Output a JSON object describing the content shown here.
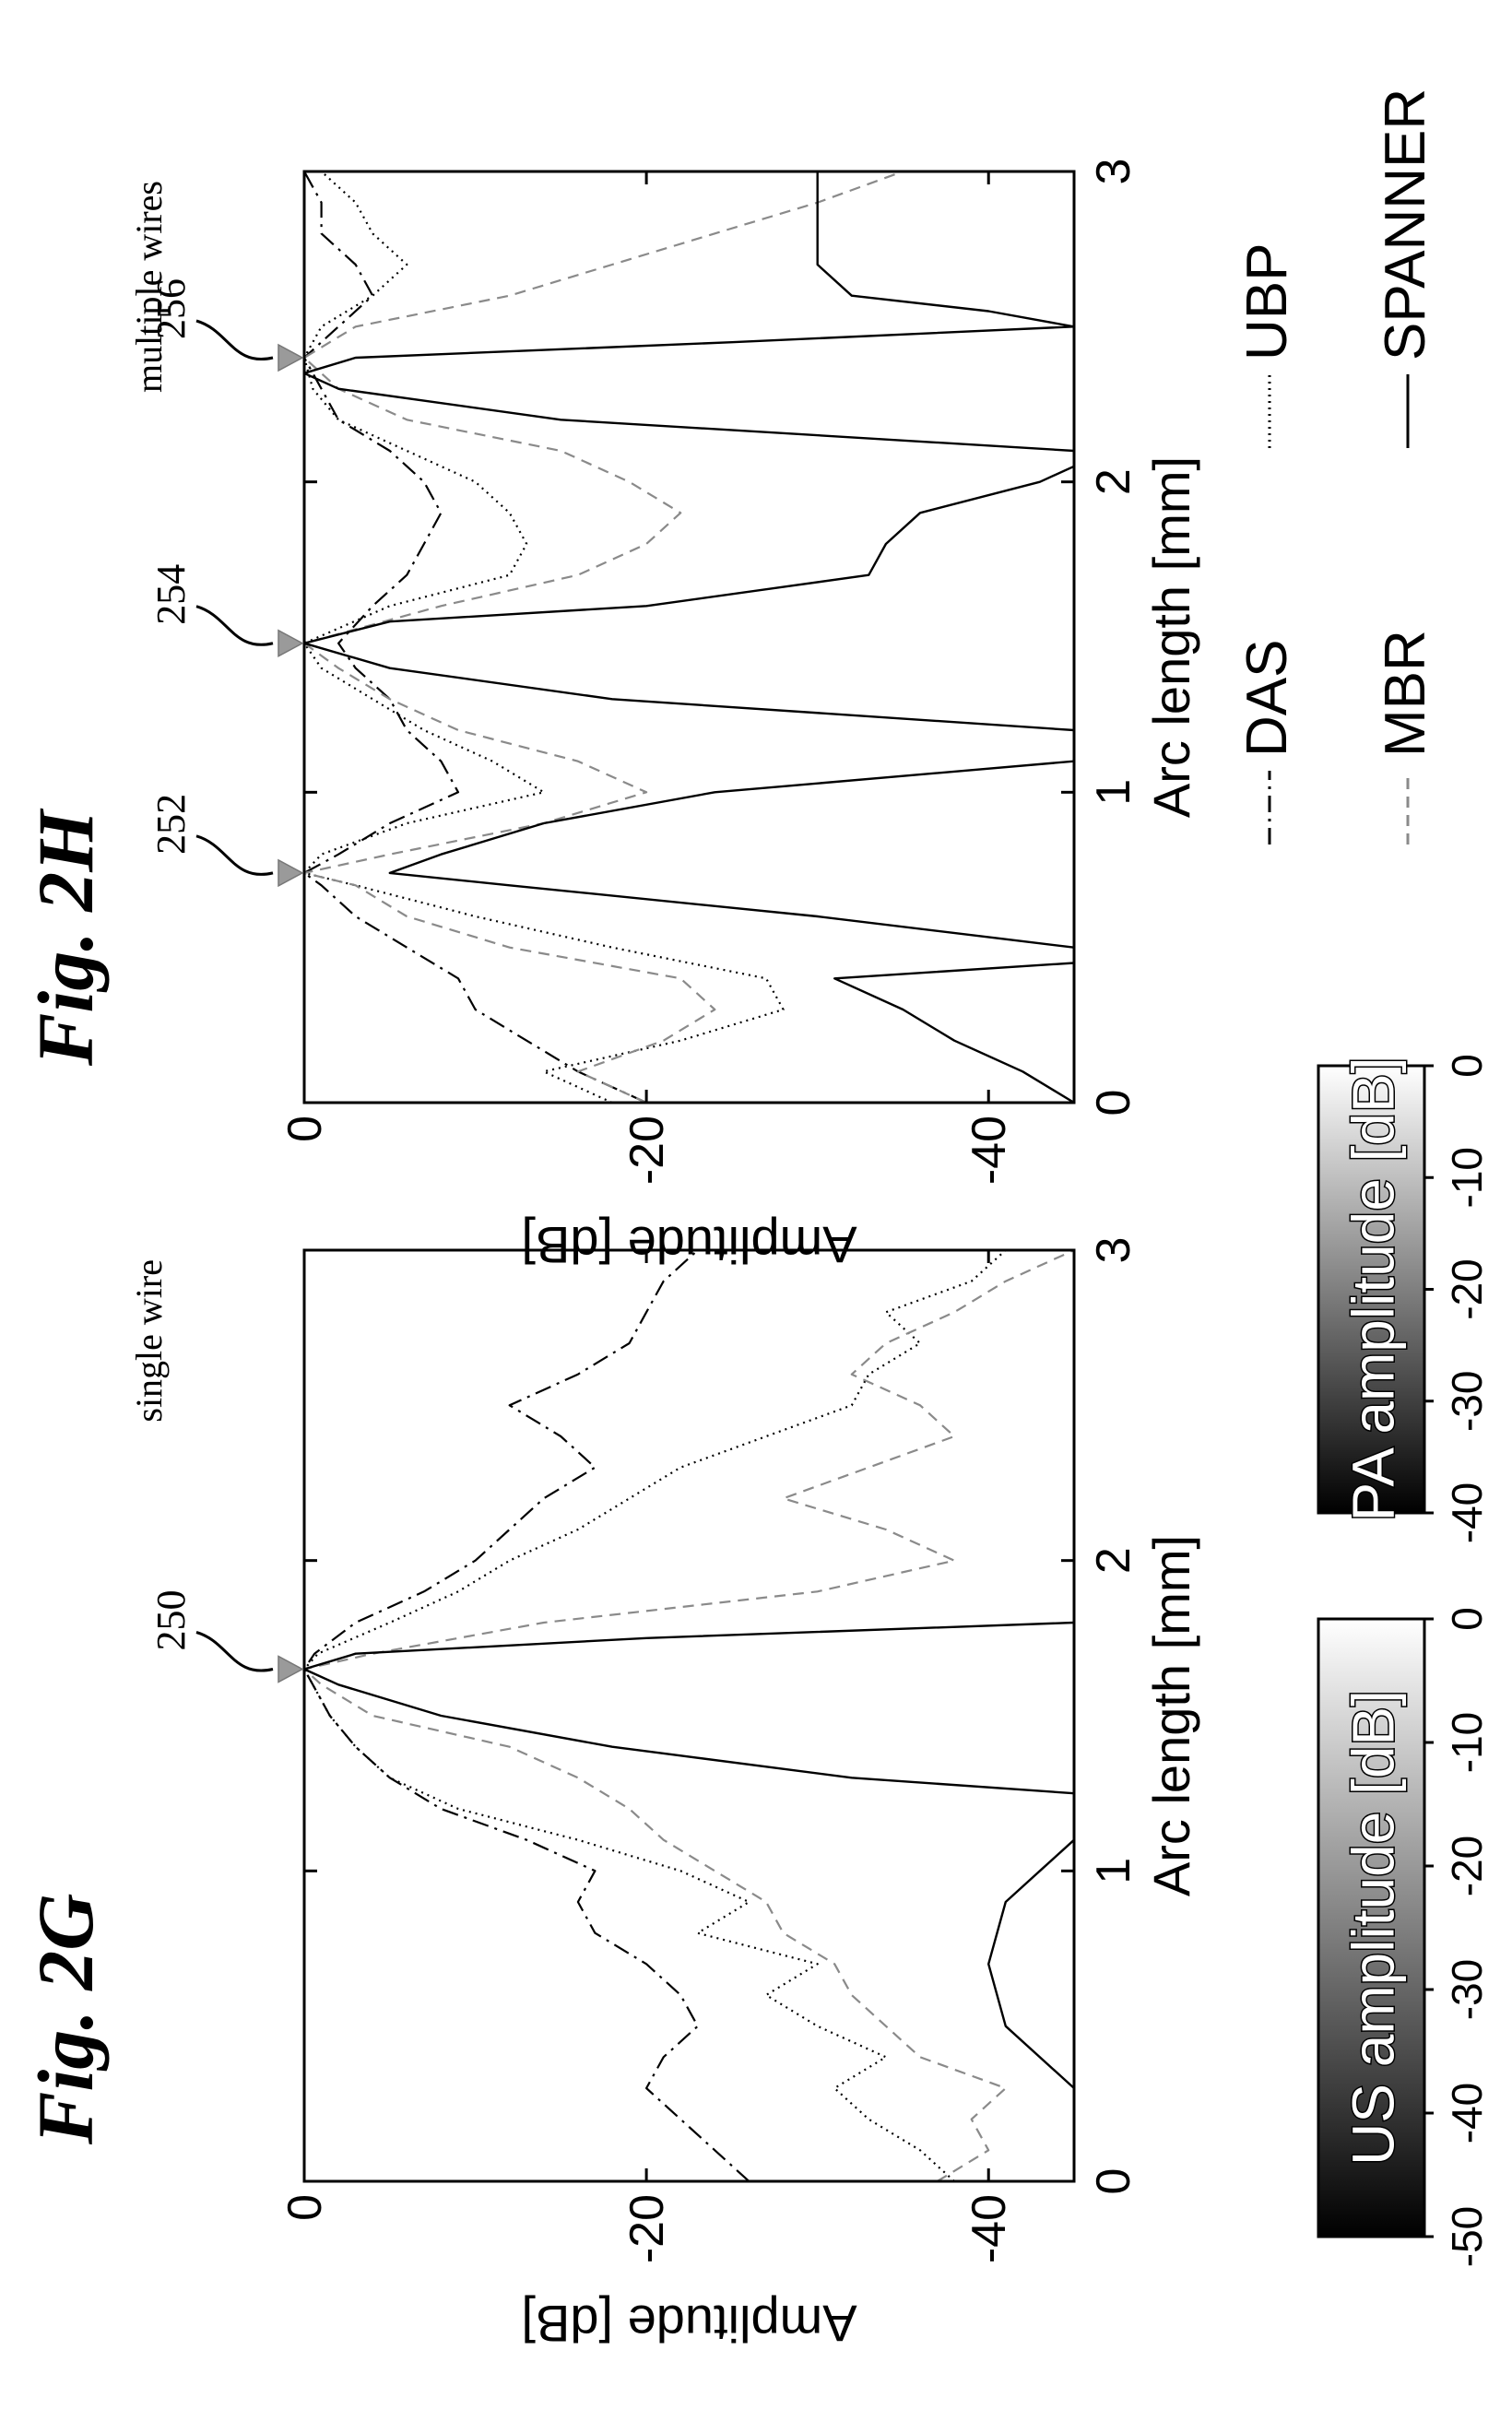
{
  "panels": [
    {
      "fig_label": "Fig. 2G",
      "subtitle": "single wire",
      "markers": [
        {
          "ref": "250",
          "x": 1.65
        }
      ]
    },
    {
      "fig_label": "Fig. 2H",
      "subtitle": "multiple wires",
      "markers": [
        {
          "ref": "252",
          "x": 0.74
        },
        {
          "ref": "254",
          "x": 1.48
        },
        {
          "ref": "256",
          "x": 2.4
        }
      ]
    }
  ],
  "legend": {
    "items": [
      {
        "label": "DAS",
        "style": "dashdot"
      },
      {
        "label": "UBP",
        "style": "dotted"
      },
      {
        "label": "MBR",
        "style": "dashed-gray"
      },
      {
        "label": "SPANNER",
        "style": "solid"
      }
    ]
  },
  "colorbars": [
    {
      "label": "US amplitude [dB]",
      "ticks": [
        "-50",
        "-40",
        "-30",
        "-20",
        "-10",
        "0"
      ]
    },
    {
      "label": "PA amplitude [dB]",
      "ticks": [
        "-40",
        "-30",
        "-20",
        "-10",
        "0"
      ]
    }
  ],
  "colors": {
    "line": "#000000",
    "mbr": "#8a8a8a",
    "marker": "#9a9a9a"
  },
  "chart_data": [
    {
      "type": "line",
      "title": "",
      "xlabel": "Arc length [mm]",
      "ylabel": "Amplitude [dB]",
      "xlim": [
        0,
        3
      ],
      "ylim": [
        -45,
        0
      ],
      "xticks": [
        "0",
        "1",
        "2",
        "3"
      ],
      "yticks": [
        "0",
        "-20",
        "-40"
      ],
      "series": [
        {
          "name": "DAS",
          "x": [
            0,
            0.1,
            0.2,
            0.3,
            0.4,
            0.5,
            0.6,
            0.7,
            0.8,
            0.9,
            1.0,
            1.1,
            1.2,
            1.3,
            1.4,
            1.5,
            1.6,
            1.65,
            1.7,
            1.8,
            1.9,
            2.0,
            2.1,
            2.2,
            2.3,
            2.4,
            2.5,
            2.6,
            2.7,
            2.8,
            2.9,
            3.0
          ],
          "y": [
            -26,
            -24,
            -22,
            -20,
            -21,
            -23,
            -22,
            -20,
            -17,
            -16,
            -17,
            -13,
            -8,
            -5,
            -3,
            -1.5,
            -0.5,
            0,
            -0.6,
            -3,
            -7,
            -10,
            -12,
            -14,
            -17,
            -15,
            -12,
            -16,
            -19,
            -20,
            -21,
            -23
          ]
        },
        {
          "name": "UBP",
          "x": [
            0,
            0.1,
            0.2,
            0.3,
            0.4,
            0.5,
            0.6,
            0.7,
            0.8,
            0.9,
            1.0,
            1.1,
            1.2,
            1.3,
            1.4,
            1.5,
            1.6,
            1.65,
            1.7,
            1.8,
            1.9,
            2.0,
            2.1,
            2.2,
            2.3,
            2.4,
            2.5,
            2.6,
            2.7,
            2.8,
            2.9,
            3.0
          ],
          "y": [
            -38,
            -36,
            -33,
            -31,
            -34,
            -30,
            -27,
            -30,
            -23,
            -26,
            -22,
            -16,
            -9,
            -5,
            -3,
            -1.5,
            -0.5,
            0,
            -0.8,
            -5,
            -9,
            -12,
            -16,
            -19,
            -22,
            -27,
            -32,
            -33,
            -36,
            -34,
            -39,
            -41
          ]
        },
        {
          "name": "MBR",
          "x": [
            0,
            0.1,
            0.2,
            0.3,
            0.4,
            0.5,
            0.6,
            0.7,
            0.8,
            0.9,
            1.0,
            1.1,
            1.2,
            1.3,
            1.35,
            1.4,
            1.5,
            1.6,
            1.65,
            1.7,
            1.8,
            1.9,
            2.0,
            2.1,
            2.2,
            2.3,
            2.4,
            2.5,
            2.6,
            2.7,
            2.8,
            2.9,
            3.0
          ],
          "y": [
            -37,
            -40,
            -39,
            -41,
            -36,
            -34,
            -32,
            -31,
            -28,
            -27,
            -24,
            -21,
            -19,
            -16,
            -14,
            -12,
            -4,
            -1,
            0,
            -4,
            -14,
            -30,
            -38,
            -34,
            -28,
            -33,
            -38,
            -36,
            -32,
            -34,
            -38,
            -41,
            -45
          ]
        },
        {
          "name": "SPANNER",
          "x": [
            0.3,
            0.5,
            0.7,
            0.9,
            1.0,
            1.1,
            1.2,
            1.25,
            1.3,
            1.4,
            1.5,
            1.6,
            1.65,
            1.7,
            1.75,
            1.8
          ],
          "y": [
            -45,
            -41,
            -40,
            -41,
            -43,
            -45,
            -45,
            -45,
            -32,
            -18,
            -8,
            -2,
            0,
            -3,
            -20,
            -45
          ]
        }
      ]
    },
    {
      "type": "line",
      "title": "",
      "xlabel": "Arc length [mm]",
      "ylabel": "Amplitude [dB]",
      "xlim": [
        0,
        3
      ],
      "ylim": [
        -45,
        0
      ],
      "xticks": [
        "0",
        "1",
        "2",
        "3"
      ],
      "yticks": [
        "0",
        "-20",
        "-40"
      ],
      "series": [
        {
          "name": "DAS",
          "x": [
            0,
            0.1,
            0.2,
            0.3,
            0.4,
            0.5,
            0.6,
            0.7,
            0.74,
            0.8,
            0.9,
            1.0,
            1.1,
            1.2,
            1.3,
            1.4,
            1.48,
            1.6,
            1.7,
            1.8,
            1.9,
            2.0,
            2.1,
            2.2,
            2.3,
            2.4,
            2.5,
            2.6,
            2.7,
            2.8,
            2.9,
            3.0
          ],
          "y": [
            -20,
            -16,
            -13,
            -10,
            -9,
            -6,
            -3,
            -1,
            0,
            -2,
            -5,
            -9,
            -8,
            -6,
            -5,
            -3,
            -2,
            -4,
            -6,
            -7,
            -8,
            -7,
            -5,
            -2,
            -1,
            0,
            -2,
            -4,
            -3,
            -1,
            -1,
            0
          ]
        },
        {
          "name": "UBP",
          "x": [
            0,
            0.1,
            0.2,
            0.3,
            0.4,
            0.5,
            0.6,
            0.7,
            0.74,
            0.8,
            0.9,
            1.0,
            1.1,
            1.2,
            1.3,
            1.4,
            1.48,
            1.6,
            1.7,
            1.8,
            1.9,
            2.0,
            2.1,
            2.2,
            2.3,
            2.4,
            2.5,
            2.6,
            2.7,
            2.8,
            2.9,
            3.0
          ],
          "y": [
            -18,
            -14,
            -22,
            -28,
            -27,
            -18,
            -10,
            -3,
            0,
            -1,
            -6,
            -14,
            -11,
            -7,
            -4,
            -1,
            0,
            -5,
            -12,
            -13,
            -12,
            -10,
            -6,
            -2,
            -0.5,
            0,
            -1,
            -4,
            -6,
            -4,
            -3,
            -1
          ]
        },
        {
          "name": "MBR",
          "x": [
            0,
            0.1,
            0.2,
            0.3,
            0.4,
            0.5,
            0.6,
            0.7,
            0.74,
            0.8,
            0.9,
            1.0,
            1.1,
            1.2,
            1.3,
            1.4,
            1.48,
            1.6,
            1.7,
            1.8,
            1.9,
            2.0,
            2.1,
            2.2,
            2.3,
            2.4,
            2.5,
            2.6,
            2.7,
            2.8,
            2.9,
            3.0
          ],
          "y": [
            -20,
            -16,
            -21,
            -24,
            -22,
            -12,
            -6,
            -3,
            0,
            -5,
            -14,
            -20,
            -16,
            -9,
            -5,
            -2,
            0,
            -8,
            -16,
            -20,
            -22,
            -19,
            -15,
            -6,
            -2,
            0,
            -3,
            -12,
            -18,
            -24,
            -30,
            -35
          ]
        },
        {
          "name": "SPANNER",
          "x": [
            0,
            0.1,
            0.2,
            0.3,
            0.4,
            0.45,
            0.5,
            0.6,
            0.7,
            0.74,
            0.8,
            0.9,
            1.0,
            1.1,
            1.15,
            1.2,
            1.3,
            1.4,
            1.48,
            1.55,
            1.6,
            1.7,
            1.8,
            1.9,
            2.0,
            2.05,
            2.1,
            2.2,
            2.3,
            2.35,
            2.4,
            2.45,
            2.5,
            2.55,
            2.6,
            2.7,
            2.8,
            2.9,
            3.0
          ],
          "y": [
            -45,
            -42,
            -38,
            -35,
            -31,
            -45,
            -45,
            -30,
            -12,
            -5,
            -8,
            -14,
            -24,
            -45,
            -45,
            -45,
            -18,
            -5,
            0,
            -5,
            -20,
            -33,
            -34,
            -36,
            -43,
            -45,
            -45,
            -15,
            -2,
            0,
            -3,
            -25,
            -45,
            -40,
            -32,
            -30,
            -30,
            -30,
            -30
          ]
        }
      ]
    }
  ]
}
